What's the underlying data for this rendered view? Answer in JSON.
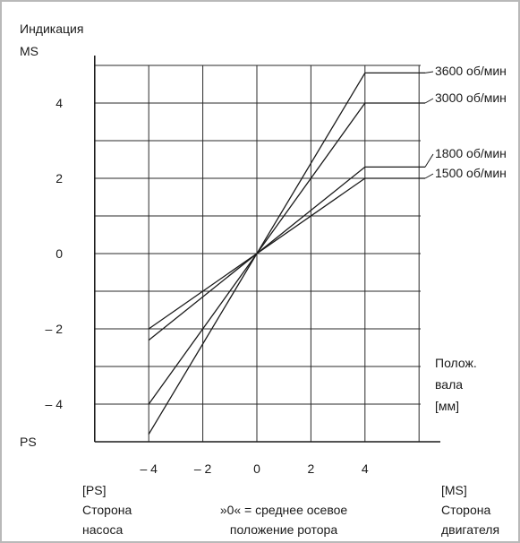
{
  "chart_data": {
    "type": "line",
    "ylabel": [
      "Индикация",
      "MS"
    ],
    "y_bottom_label": "PS",
    "x_axis_label": [
      "Полож.",
      "вала",
      "[мм]"
    ],
    "x_ticks": [
      "– 4",
      "– 2",
      "0",
      "2",
      "4"
    ],
    "y_ticks": [
      "4",
      "2",
      "0",
      "– 2",
      "– 4"
    ],
    "xlim": [
      -6,
      7
    ],
    "ylim": [
      -5,
      5
    ],
    "grid": true,
    "series": [
      {
        "name": "3600 об/мин",
        "x": [
          -4,
          4
        ],
        "y": [
          -4.8,
          4.8
        ]
      },
      {
        "name": "3000 об/мин",
        "x": [
          -4,
          4
        ],
        "y": [
          -4.0,
          4.0
        ]
      },
      {
        "name": "1800 об/мин",
        "x": [
          -4,
          4
        ],
        "y": [
          -2.3,
          2.3
        ]
      },
      {
        "name": "1500 об/мин",
        "x": [
          -4,
          4
        ],
        "y": [
          -2.0,
          2.0
        ]
      }
    ],
    "annotations": {
      "left": [
        "[PS]",
        "Сторона",
        "насоса"
      ],
      "center": [
        "»0« = среднее осевое",
        "положение ротора"
      ],
      "right": [
        "[MS]",
        "Сторона",
        "двигателя"
      ]
    }
  }
}
